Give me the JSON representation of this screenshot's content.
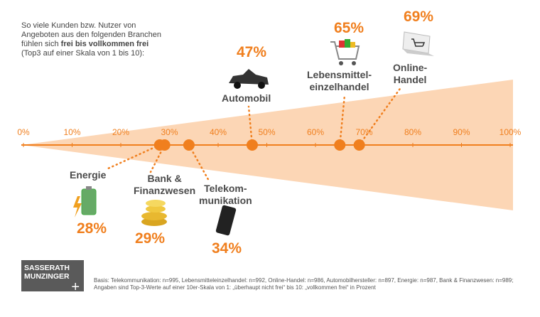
{
  "chart_data": {
    "type": "dot",
    "intro": [
      "So viele Kunden bzw. Nutzer von",
      "Angeboten aus den folgenden Branchen",
      "fühlen sich ",
      "frei bis vollkommen frei",
      "(Top3 auf einer Skala von 1 bis 10):"
    ],
    "categories": [
      "Energie",
      "Bank &\nFinanzwesen",
      "Telekom-\nmunikation",
      "Automobil",
      "Lebensmittel-\neinzelhandel",
      "Online-\nHandel"
    ],
    "values": [
      28,
      29,
      34,
      47,
      65,
      69
    ],
    "value_labels": [
      "28%",
      "29%",
      "34%",
      "47%",
      "65%",
      "69%"
    ],
    "color": "#f07f1e",
    "xlim": [
      0,
      100
    ],
    "xticks": [
      {
        "value": 0,
        "label": "0%"
      },
      {
        "value": 10,
        "label": "10%"
      },
      {
        "value": 20,
        "label": "20%"
      },
      {
        "value": 30,
        "label": "30%"
      },
      {
        "value": 40,
        "label": "40%"
      },
      {
        "value": 50,
        "label": "50%"
      },
      {
        "value": 60,
        "label": "60%"
      },
      {
        "value": 70,
        "label": "70%"
      },
      {
        "value": 80,
        "label": "80%"
      },
      {
        "value": 90,
        "label": "90%"
      },
      {
        "value": 100,
        "label": "100%"
      }
    ],
    "logo": [
      "SASSERATH",
      "MUNZINGER",
      "+"
    ],
    "footnote": "Basis: Telekommunikation: n=995, Lebensmitteleinzelhandel: n=992, Online-Handel: n=986, Automobilhersteller: n=897, Energie: n=987, Bank & Finanzwesen: n=989; Angaben sind Top-3-Werte auf einer 10er-Skala von 1: „überhaupt nicht frei“ bis 10: „vollkommen frei“ in Prozent"
  }
}
